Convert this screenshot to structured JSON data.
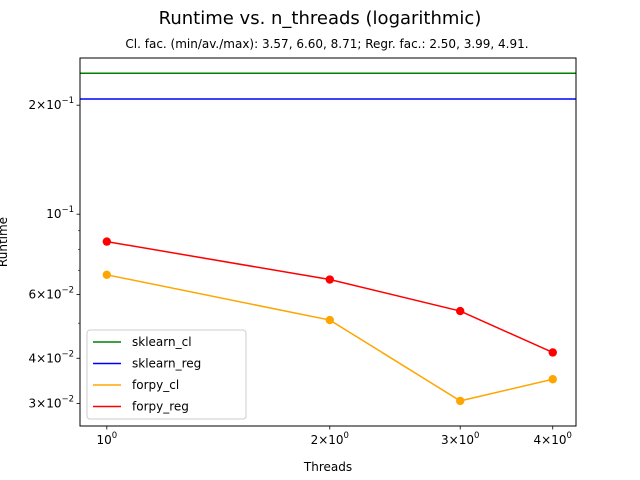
{
  "chart_data": {
    "type": "line",
    "title": "Runtime vs. n_threads (logarithmic)",
    "subtitle": "Cl. fac. (min/av./max): 3.57, 6.60, 8.71; Regr. fac.: 2.50, 3.99, 4.91.",
    "xlabel": "Threads",
    "ylabel": "Runtime",
    "xscale": "log",
    "yscale": "log",
    "xlim": [
      0.92,
      4.3
    ],
    "ylim": [
      0.026,
      0.27
    ],
    "x_ticks": [
      {
        "value": 1,
        "base": "10",
        "exp": "0"
      },
      {
        "value": 2,
        "base": "2×10",
        "exp": "0"
      },
      {
        "value": 3,
        "base": "3×10",
        "exp": "0"
      },
      {
        "value": 4,
        "base": "4×10",
        "exp": "0"
      }
    ],
    "y_ticks": [
      {
        "value": 0.03,
        "base": "3×10",
        "exp": "−2"
      },
      {
        "value": 0.04,
        "base": "4×10",
        "exp": "−2"
      },
      {
        "value": 0.06,
        "base": "6×10",
        "exp": "−2"
      },
      {
        "value": 0.1,
        "base": "10",
        "exp": "−1"
      },
      {
        "value": 0.2,
        "base": "2×10",
        "exp": "−1"
      }
    ],
    "legend_position": "lower-left",
    "series": [
      {
        "name": "sklearn_cl",
        "color": "#008000",
        "markers": false,
        "x": [
          0.92,
          4.3
        ],
        "values": [
          0.245,
          0.245
        ]
      },
      {
        "name": "sklearn_reg",
        "color": "#0000ff",
        "markers": false,
        "x": [
          0.92,
          4.3
        ],
        "values": [
          0.208,
          0.208
        ]
      },
      {
        "name": "forpy_cl",
        "color": "#ffa500",
        "markers": true,
        "x": [
          1,
          2,
          3,
          4
        ],
        "values": [
          0.068,
          0.051,
          0.0305,
          0.035
        ]
      },
      {
        "name": "forpy_reg",
        "color": "#ff0000",
        "markers": true,
        "x": [
          1,
          2,
          3,
          4
        ],
        "values": [
          0.084,
          0.066,
          0.054,
          0.0415
        ]
      }
    ]
  }
}
